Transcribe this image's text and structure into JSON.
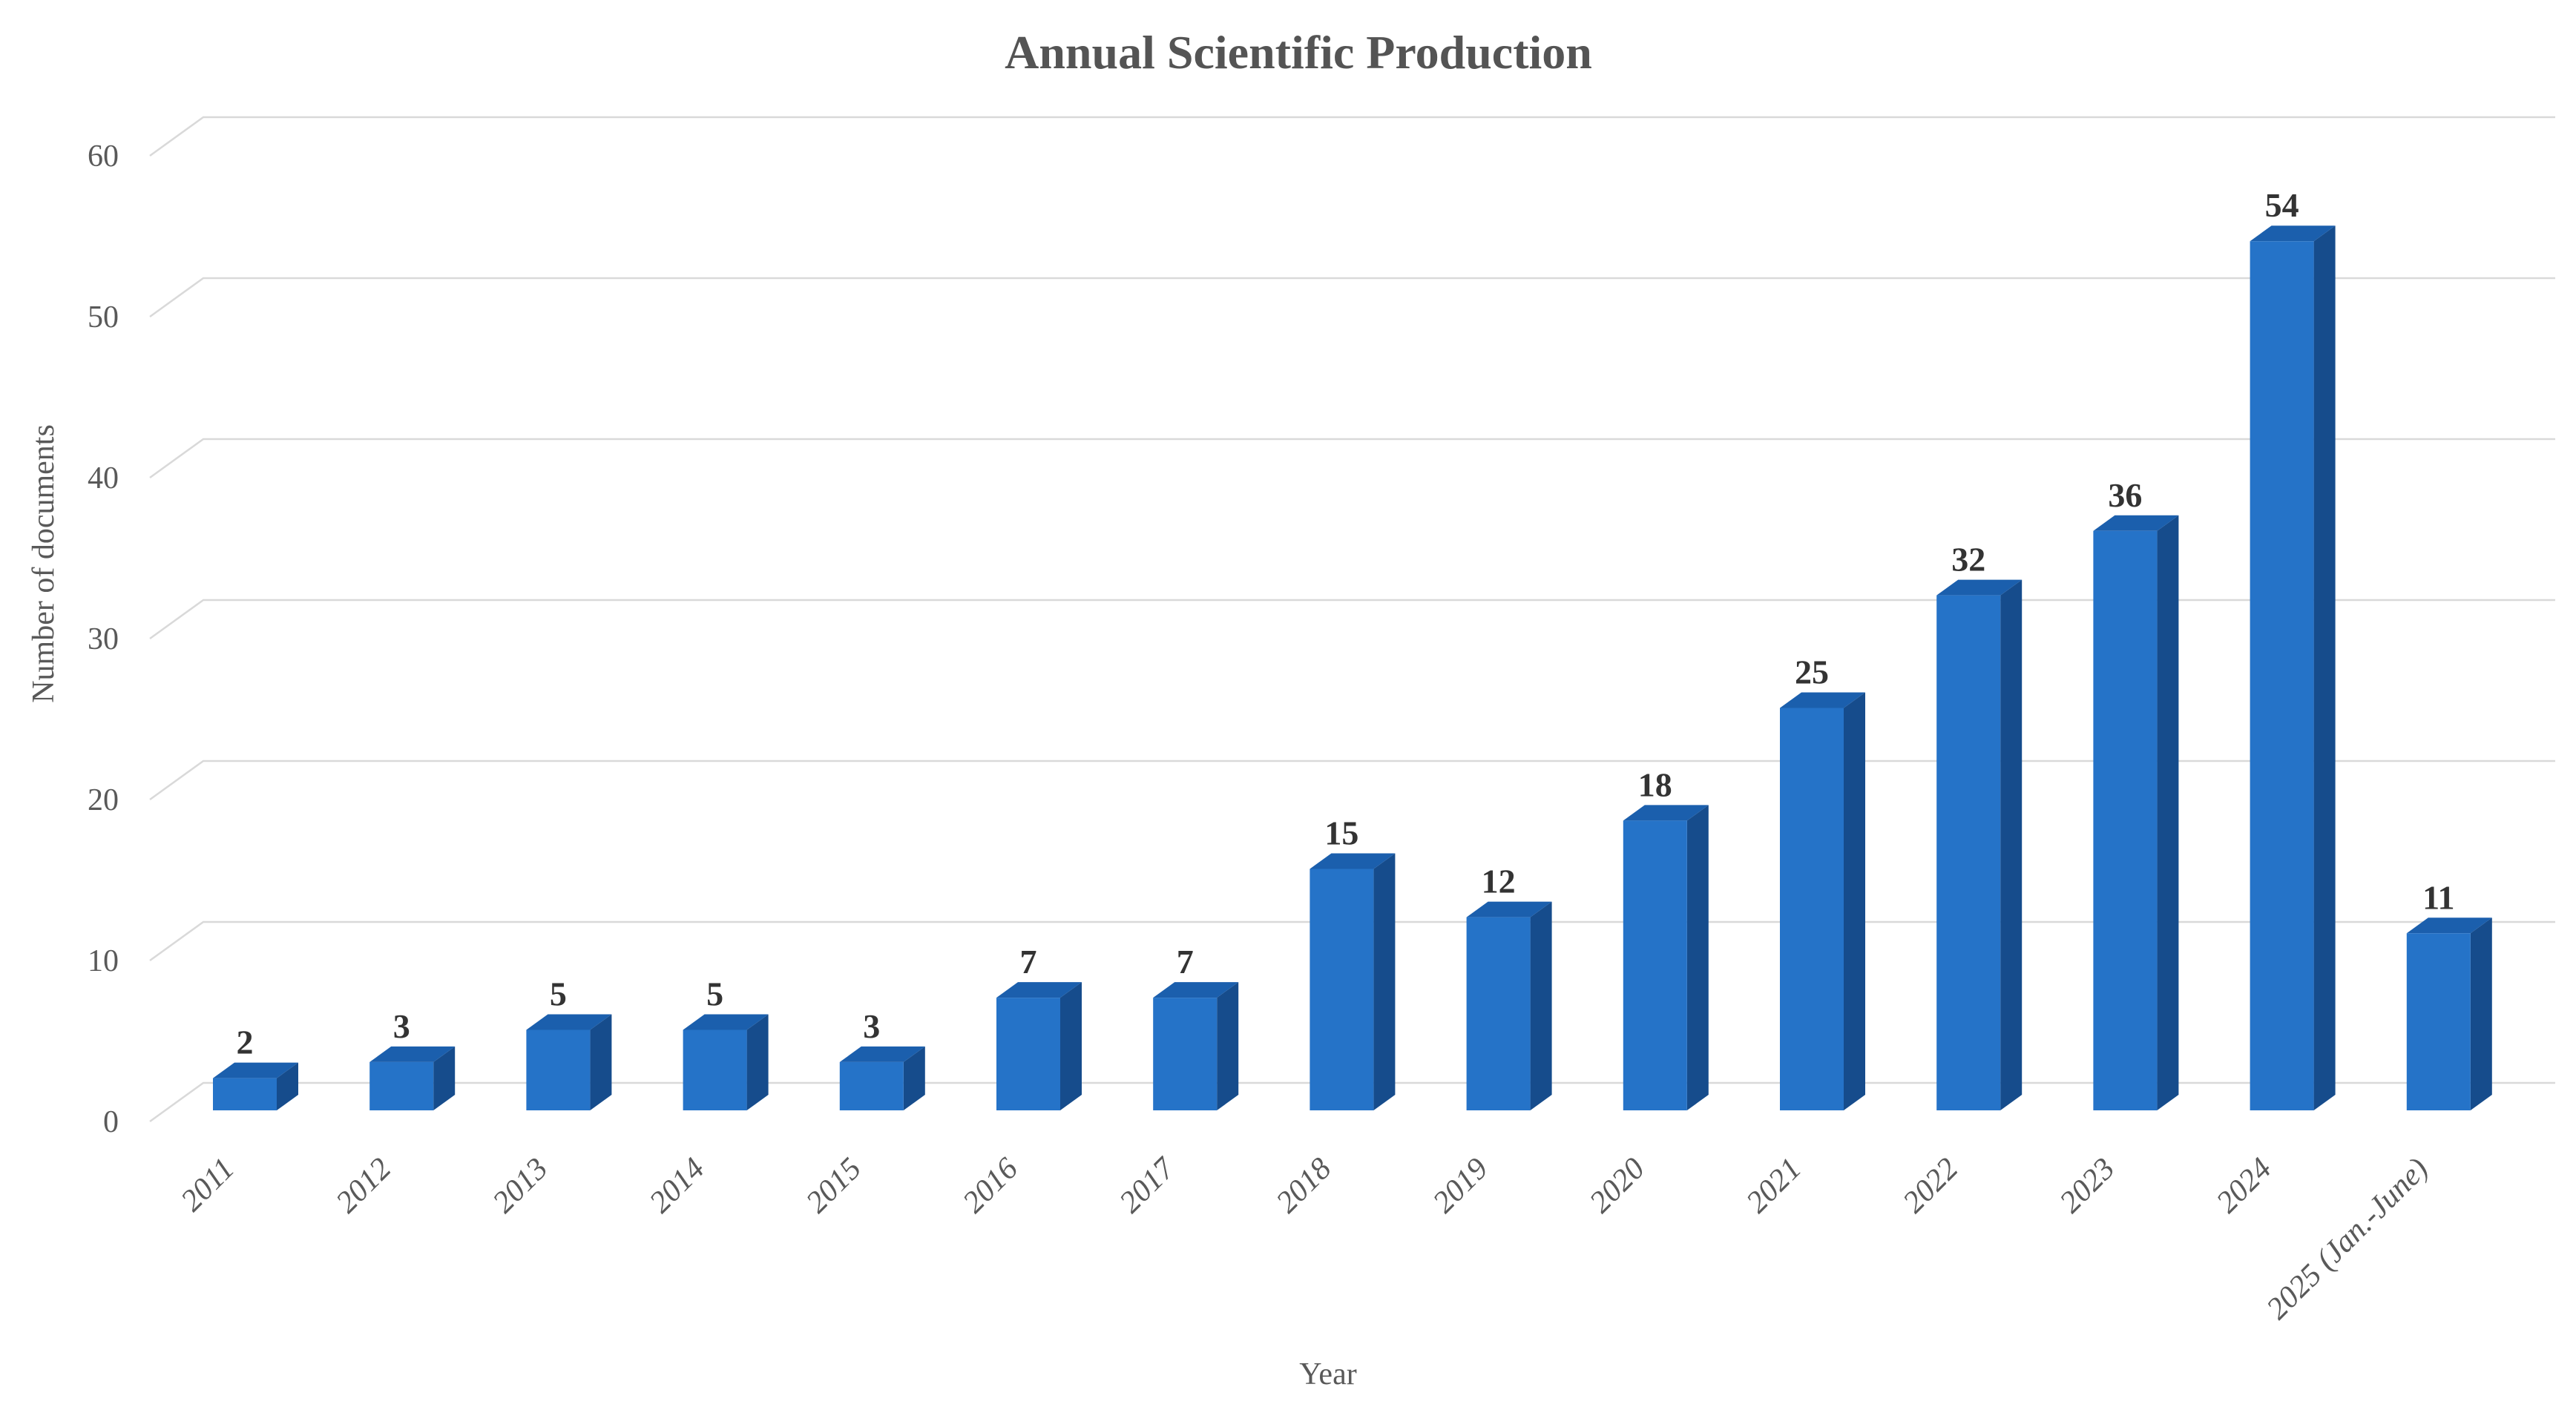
{
  "chart_data": {
    "type": "bar",
    "style": "3d-column",
    "title": "Annual Scientific Production",
    "xlabel": "Year",
    "ylabel": "Number of documents",
    "categories": [
      "2011",
      "2012",
      "2013",
      "2014",
      "2015",
      "2016",
      "2017",
      "2018",
      "2019",
      "2020",
      "2021",
      "2022",
      "2023",
      "2024",
      "2025 (Jan.-June)"
    ],
    "values": [
      2,
      3,
      5,
      5,
      3,
      7,
      7,
      15,
      12,
      18,
      25,
      32,
      36,
      54,
      11
    ],
    "data_labels_shown": true,
    "yticks": [
      0,
      10,
      20,
      30,
      40,
      50,
      60
    ],
    "ylim": [
      0,
      60
    ],
    "grid": true,
    "legend": "none",
    "colors": {
      "bar_front": "#2573C8",
      "bar_top": "#1B5FAD",
      "bar_side": "#164C8C",
      "gridline": "#D9D9D9",
      "axis_text": "#595959",
      "data_label": "#333333",
      "title_text": "#545454",
      "background": "#FFFFFF"
    }
  }
}
